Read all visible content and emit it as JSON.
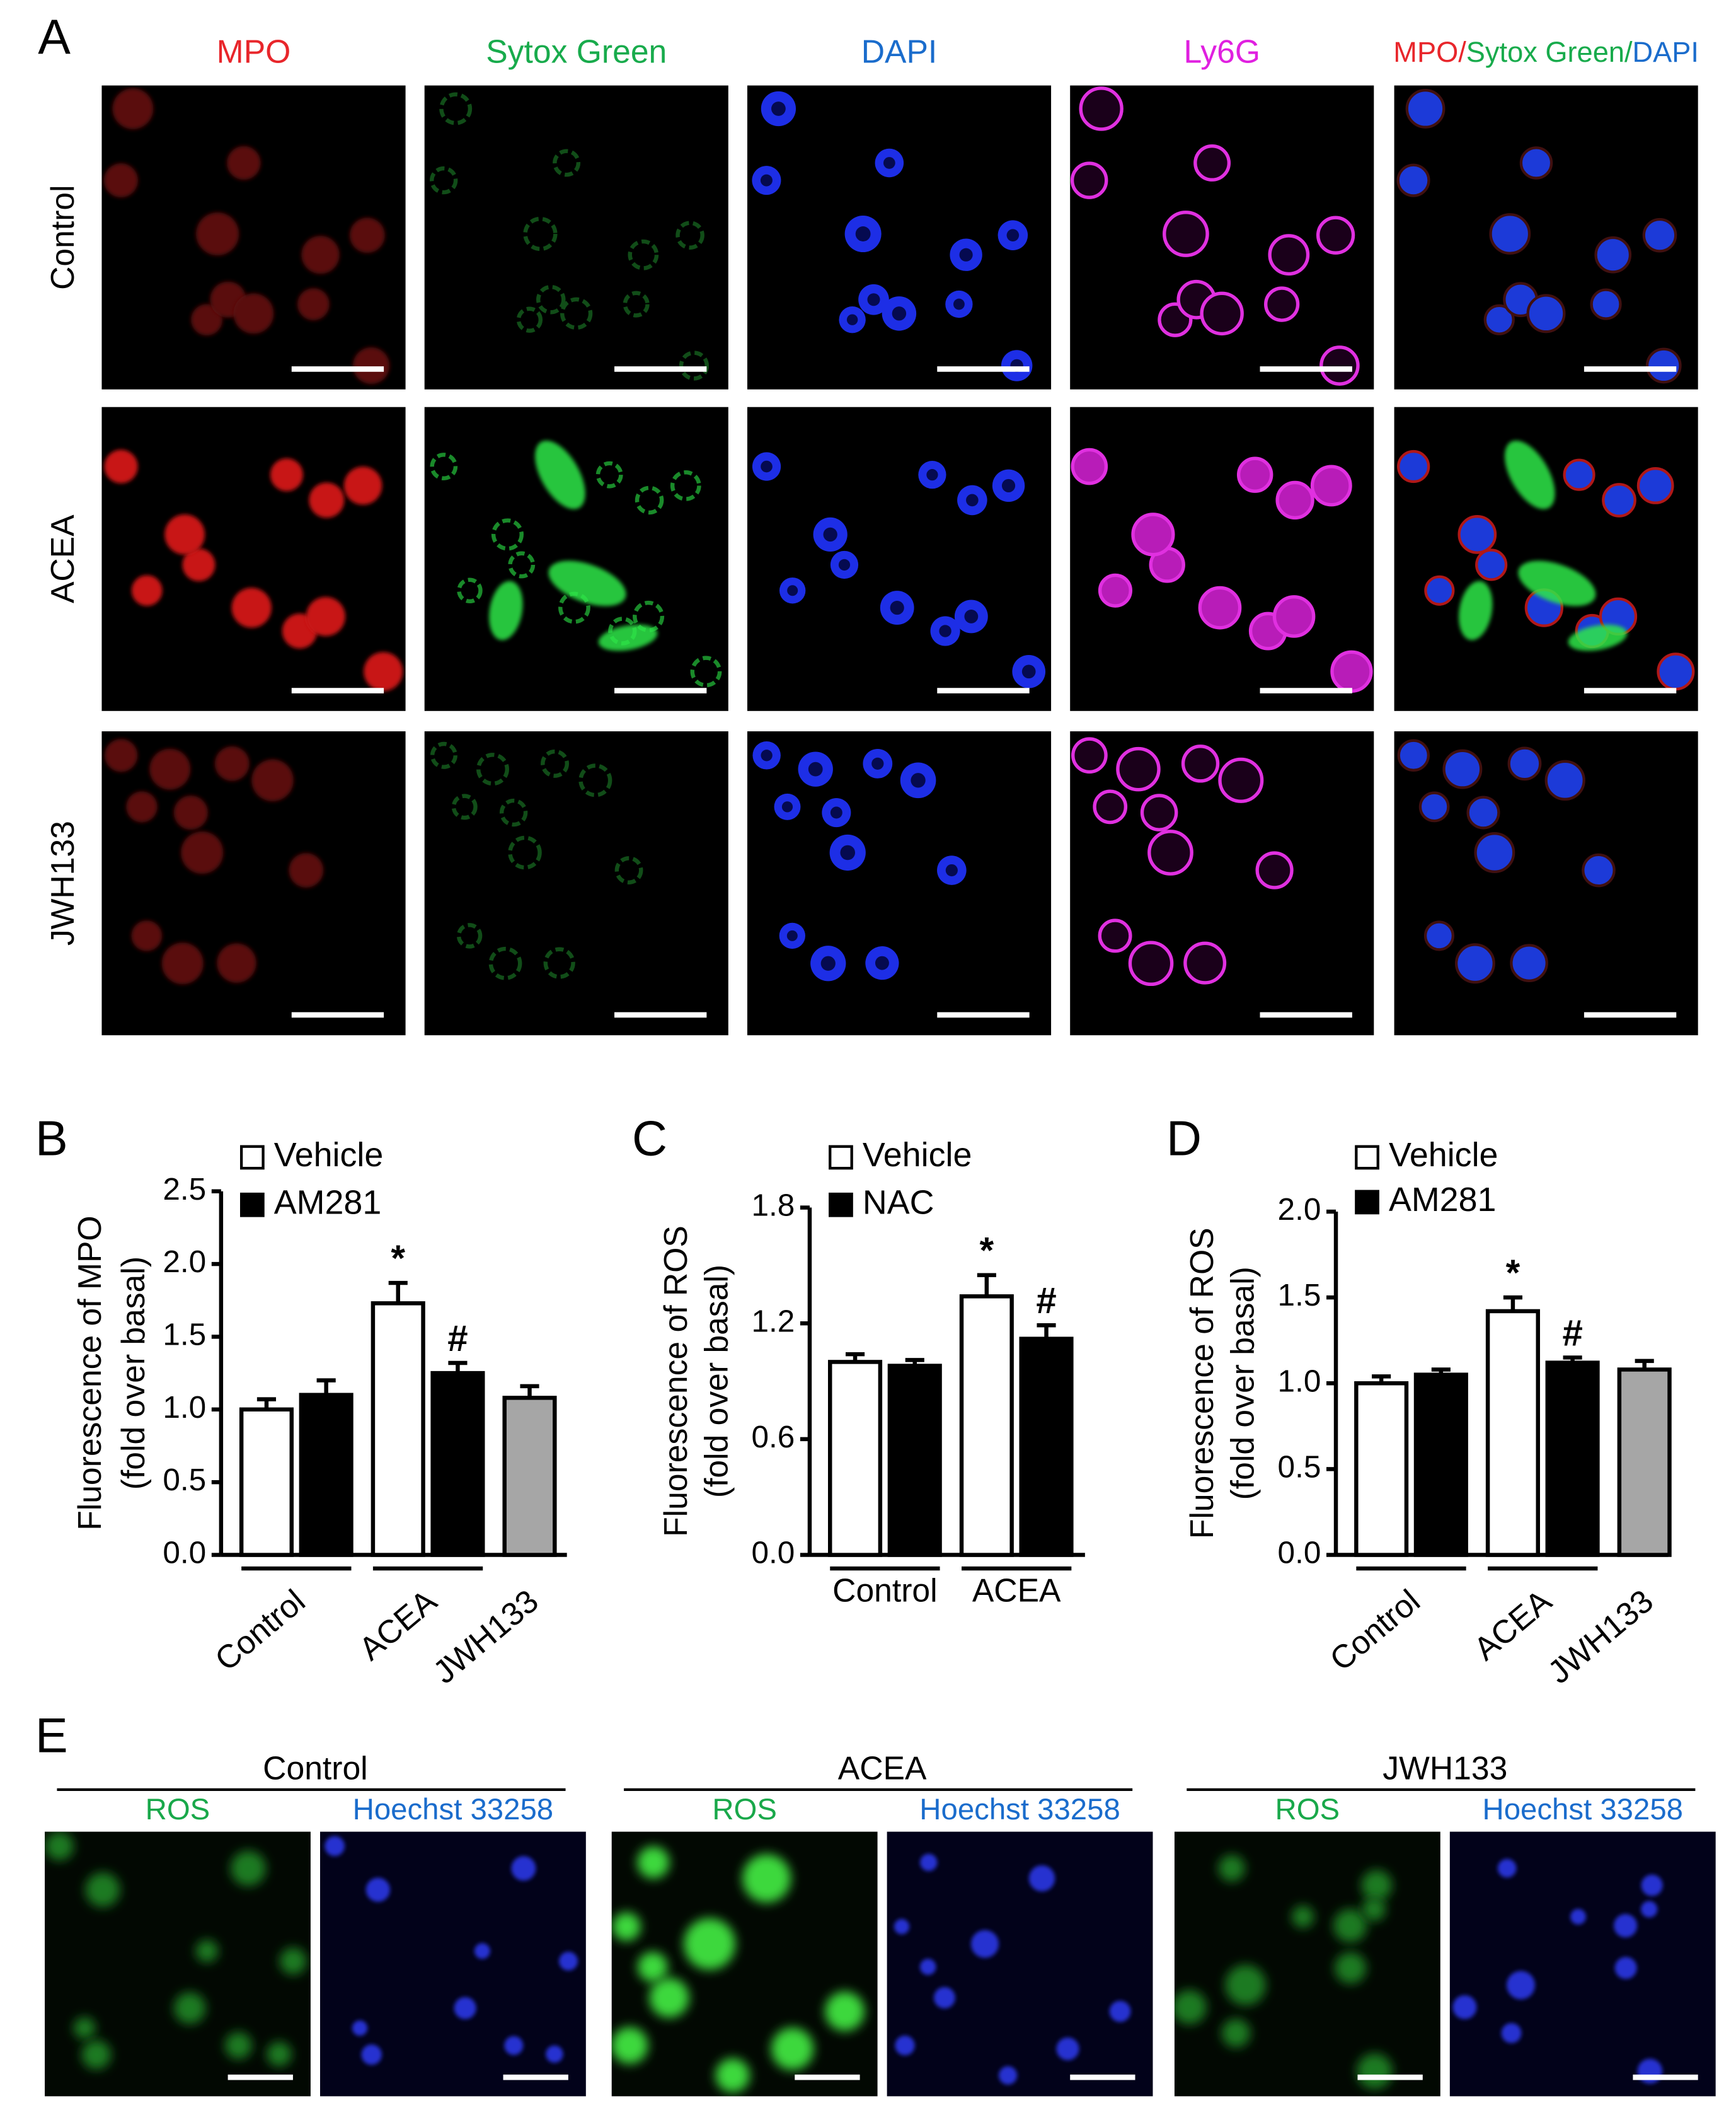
{
  "panel_labels": [
    "A",
    "B",
    "C",
    "D",
    "E"
  ],
  "panel_a": {
    "channels": [
      {
        "name": "MPO",
        "color": "#e8262b"
      },
      {
        "name": "Sytox Green",
        "color": "#18ab4c"
      },
      {
        "name": "DAPI",
        "color": "#1a6ccc"
      },
      {
        "name": "Ly6G",
        "color": "#e020e0"
      }
    ],
    "merge": [
      {
        "text": "MPO/",
        "color": "#e8262b"
      },
      {
        "text": "Sytox Green/",
        "color": "#18ab4c"
      },
      {
        "text": "DAPI",
        "color": "#1a6ccc"
      }
    ],
    "rows": [
      "Control",
      "ACEA",
      "JWH133"
    ]
  },
  "chart_data": [
    {
      "type": "bar",
      "ylabel": [
        "Fluorescence of MPO",
        "(fold over basal)"
      ],
      "categories": [
        "Control",
        "ACEA",
        "JWH133"
      ],
      "rotated_labels": true,
      "series": [
        {
          "name": "Vehicle",
          "color": "#ffffff",
          "values": [
            1.0,
            1.73,
            null
          ],
          "errors": [
            0.07,
            0.14,
            null
          ],
          "markers": [
            null,
            "*",
            null
          ]
        },
        {
          "name": "AM281",
          "color": "#000000",
          "values": [
            1.1,
            1.25,
            null
          ],
          "errors": [
            0.1,
            0.07,
            null
          ],
          "markers": [
            null,
            "#",
            null
          ]
        }
      ],
      "unlabeled_series": [
        {
          "color": "#a6a6a6",
          "values": [
            null,
            null,
            1.08
          ],
          "errors": [
            null,
            null,
            0.08
          ]
        }
      ],
      "ylim": [
        0,
        2.5
      ],
      "yticks": [
        {
          "value": 0,
          "label": "0.0"
        },
        0.5,
        {
          "value": 1,
          "label": "1.0"
        },
        1.5,
        {
          "value": 2,
          "label": "2.0"
        },
        2.5
      ]
    },
    {
      "type": "bar",
      "ylabel": [
        "Fluorescence of ROS",
        "(fold over basal)"
      ],
      "categories": [
        "Control",
        "ACEA"
      ],
      "rotated_labels": false,
      "series": [
        {
          "name": "Vehicle",
          "color": "#ffffff",
          "values": [
            1.0,
            1.34
          ],
          "errors": [
            0.04,
            0.11
          ],
          "markers": [
            null,
            "*"
          ]
        },
        {
          "name": "NAC",
          "color": "#000000",
          "values": [
            0.98,
            1.12
          ],
          "errors": [
            0.03,
            0.07
          ],
          "markers": [
            null,
            "#"
          ]
        }
      ],
      "ylim": [
        0,
        1.8
      ],
      "yticks": [
        {
          "value": 0,
          "label": "0.0"
        },
        0.6,
        1.2,
        1.8
      ]
    },
    {
      "type": "bar",
      "ylabel": [
        "Fluorescence of ROS",
        "(fold over basal)"
      ],
      "categories": [
        "Control",
        "ACEA",
        "JWH133"
      ],
      "rotated_labels": true,
      "series": [
        {
          "name": "Vehicle",
          "color": "#ffffff",
          "values": [
            1.0,
            1.42,
            null
          ],
          "errors": [
            0.04,
            0.08,
            null
          ],
          "markers": [
            null,
            "*",
            null
          ]
        },
        {
          "name": "AM281",
          "color": "#000000",
          "values": [
            1.05,
            1.12,
            null
          ],
          "errors": [
            0.03,
            0.03,
            null
          ],
          "markers": [
            null,
            "#",
            null
          ]
        }
      ],
      "unlabeled_series": [
        {
          "color": "#a6a6a6",
          "values": [
            null,
            null,
            1.08
          ],
          "errors": [
            null,
            null,
            0.05
          ]
        }
      ],
      "ylim": [
        0,
        2.0
      ],
      "yticks": [
        {
          "value": 0,
          "label": "0.0"
        },
        0.5,
        {
          "value": 1,
          "label": "1.0"
        },
        1.5,
        {
          "value": 2,
          "label": "2.0"
        }
      ]
    }
  ],
  "panel_e": {
    "groups": [
      "Control",
      "ACEA",
      "JWH133"
    ],
    "channels": [
      {
        "name": "ROS",
        "color": "#19a84a"
      },
      {
        "name": "Hoechst 33258",
        "color": "#1a6ccc"
      }
    ]
  }
}
